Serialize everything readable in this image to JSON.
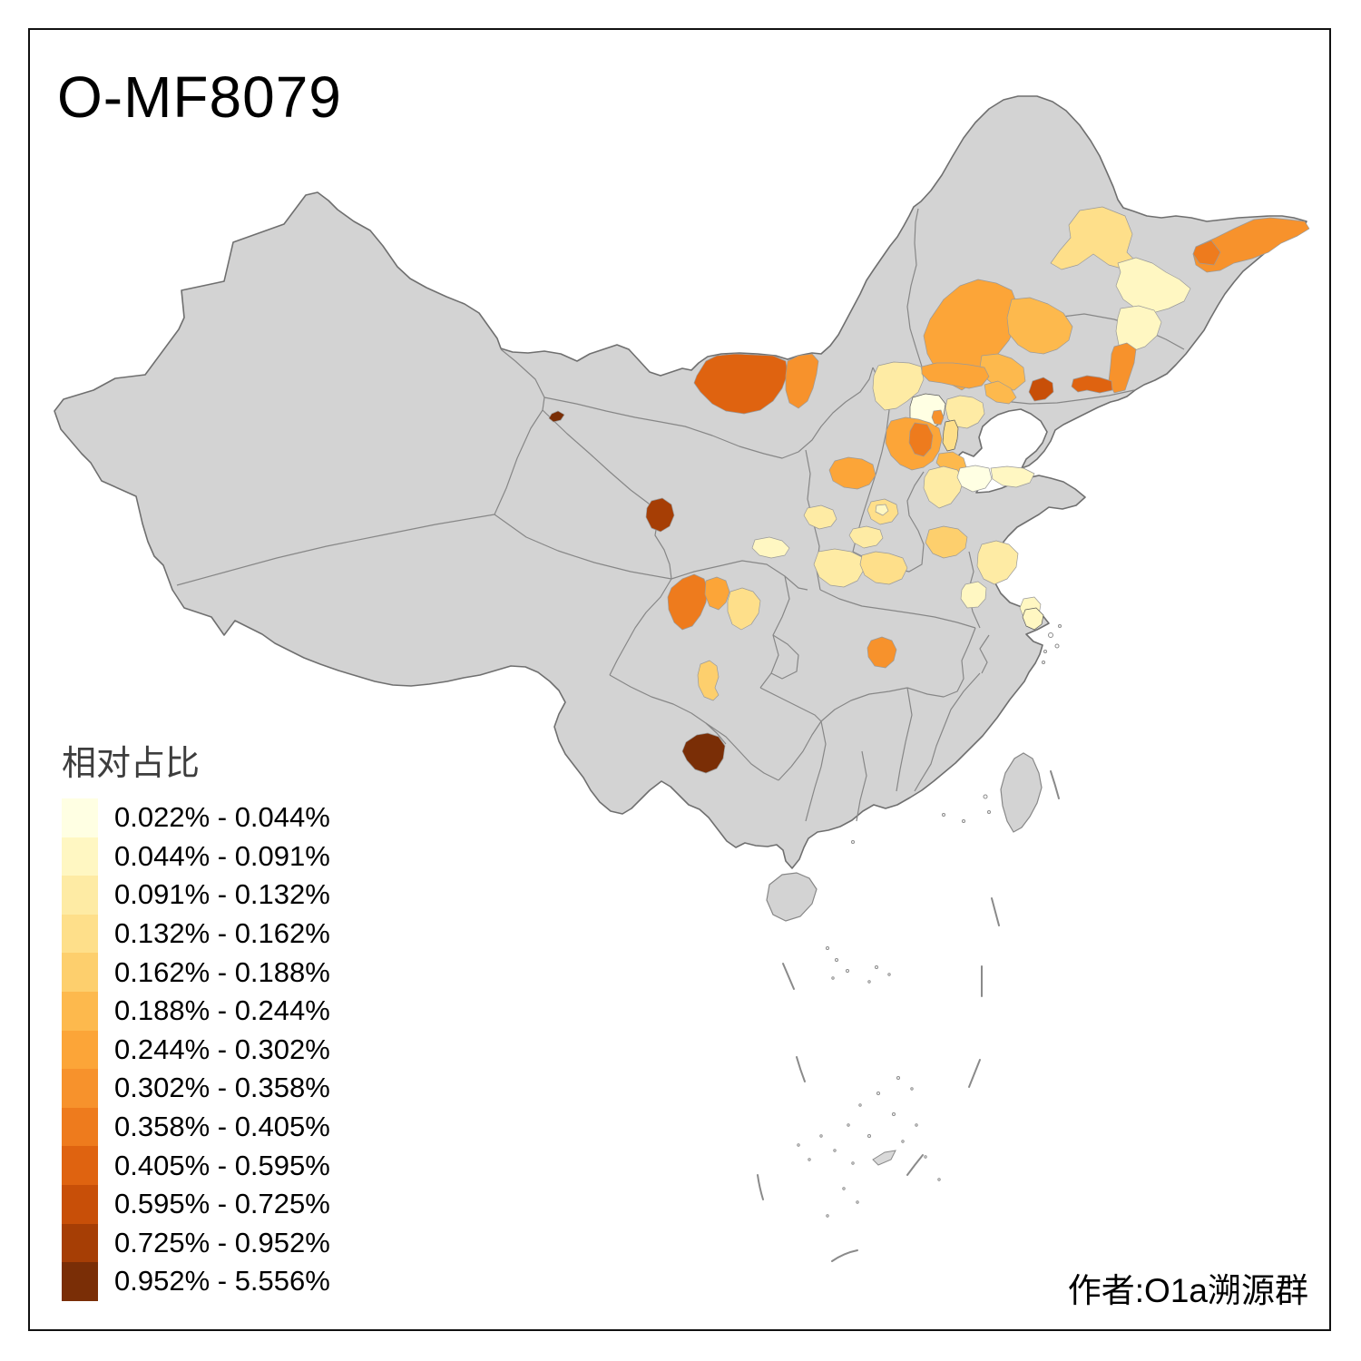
{
  "title": "O-MF8079",
  "attribution": "作者:O1a溯源群",
  "legend": {
    "title": "相对占比",
    "items": [
      {
        "label": "0.022% - 0.044%",
        "color": "#FFFFE3"
      },
      {
        "label": "0.044% - 0.091%",
        "color": "#FFF7C2"
      },
      {
        "label": "0.091% - 0.132%",
        "color": "#FEEBA4"
      },
      {
        "label": "0.132% - 0.162%",
        "color": "#FEDF8A"
      },
      {
        "label": "0.162% - 0.188%",
        "color": "#FDCF6D"
      },
      {
        "label": "0.188% - 0.244%",
        "color": "#FDB94D"
      },
      {
        "label": "0.244% - 0.302%",
        "color": "#FCA538"
      },
      {
        "label": "0.302% - 0.358%",
        "color": "#F7922C"
      },
      {
        "label": "0.358% - 0.405%",
        "color": "#EE7B1D"
      },
      {
        "label": "0.405% - 0.595%",
        "color": "#DF6310"
      },
      {
        "label": "0.595% - 0.725%",
        "color": "#C84F08"
      },
      {
        "label": "0.725% - 0.952%",
        "color": "#A63E05"
      },
      {
        "label": "0.952% - 5.556%",
        "color": "#7A2E06"
      }
    ]
  },
  "chart_data": {
    "type": "heatmap",
    "subtype": "choropleth-map-of-china-prefectures",
    "title": "O-MF8079",
    "legend_title": "相对占比",
    "legend_position": "bottom-left",
    "bins": [
      "0.022%-0.044%",
      "0.044%-0.091%",
      "0.091%-0.132%",
      "0.132%-0.162%",
      "0.162%-0.188%",
      "0.188%-0.244%",
      "0.244%-0.302%",
      "0.302%-0.358%",
      "0.358%-0.405%",
      "0.405%-0.595%",
      "0.595%-0.725%",
      "0.725%-0.952%",
      "0.952%-5.556%"
    ],
    "bin_colors": [
      "#FFFFE3",
      "#FFF7C2",
      "#FEEBA4",
      "#FEDF8A",
      "#FDCF6D",
      "#FDB94D",
      "#FCA538",
      "#F7922C",
      "#EE7B1D",
      "#DF6310",
      "#C84F08",
      "#A63E05",
      "#7A2E06"
    ],
    "no_data_color": "#D3D3D3",
    "annotation": "作者:O1a溯源群"
  },
  "map": {
    "base_fill": "#D3D3D3",
    "outline_color": "#6f6f6f",
    "province_border_color": "#878787",
    "regions": {
      "r01": 3,
      "r02": 1,
      "r03": 7,
      "r04": 8,
      "r05": 1,
      "r06": 6,
      "r07": 5,
      "r07b": 5,
      "r08": 7,
      "r09": 10,
      "r10": 9,
      "r11": 9,
      "r12": 7,
      "r13": 12,
      "r14": 11,
      "r15": 2,
      "r16": 6,
      "r17": 0,
      "r18": 7,
      "r19": 2,
      "r19b": 5,
      "r20": 3,
      "r21": 6,
      "r21b": 5,
      "r22": 8,
      "r23": 6,
      "r24": 2,
      "r25": 3,
      "r25b": 1,
      "r26": 2,
      "r27a": 2,
      "r27b": 3,
      "r28": 2,
      "r29": 0,
      "r30": 1,
      "r32": 4,
      "r33": 2,
      "r34": 1,
      "r35": 1,
      "r36": 1,
      "r37": 7,
      "r38": 8,
      "r39": 6,
      "r40": 3,
      "r41": 1,
      "r42": 4,
      "r43": 12
    }
  }
}
